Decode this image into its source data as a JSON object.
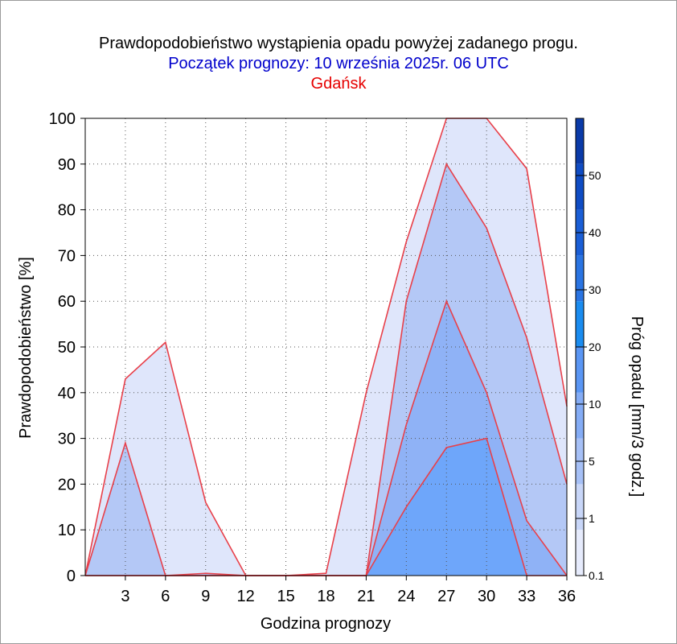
{
  "title": "Prawdopodobieństwo wystąpienia opadu powyżej zadanego progu.",
  "subtitle": "Początek prognozy: 10 września 2025r. 06 UTC",
  "location": "Gdańsk",
  "colors": {
    "title": "#000000",
    "subtitle": "#0000cc",
    "location": "#e60000",
    "series_line": "#e8404a"
  },
  "chart_data": {
    "type": "area",
    "title": "Prawdopodobieństwo wystąpienia opadu powyżej zadanego progu.",
    "xlabel": "Godzina prognozy",
    "ylabel": "Prawdopodobieństwo [%]",
    "xlim": [
      0,
      36
    ],
    "ylim": [
      0,
      100
    ],
    "x": [
      0,
      3,
      6,
      9,
      12,
      15,
      18,
      21,
      24,
      27,
      30,
      33,
      36
    ],
    "x_ticks": [
      "3",
      "6",
      "9",
      "12",
      "15",
      "18",
      "21",
      "24",
      "27",
      "30",
      "33",
      "36"
    ],
    "y_ticks": [
      "0",
      "10",
      "20",
      "30",
      "40",
      "50",
      "60",
      "70",
      "80",
      "90",
      "100"
    ],
    "grid": true,
    "series": [
      {
        "threshold": 0.1,
        "color": "#dfe6fb",
        "values": [
          0,
          43,
          51,
          16,
          0,
          0,
          0.5,
          40,
          73,
          100,
          100,
          89,
          37
        ]
      },
      {
        "threshold": 1,
        "color": "#b4c8f6",
        "values": [
          0,
          29,
          0,
          0.5,
          0,
          0,
          0,
          0,
          60,
          90,
          76,
          52,
          20
        ]
      },
      {
        "threshold": 5,
        "color": "#8fb2f6",
        "values": [
          0,
          0,
          0,
          0,
          0,
          0,
          0,
          0,
          33,
          60,
          40,
          12,
          0
        ]
      },
      {
        "threshold": 10,
        "color": "#6ea6fa",
        "values": [
          0,
          0,
          0,
          0,
          0,
          0,
          0,
          0,
          15,
          28,
          30,
          0,
          0
        ]
      }
    ],
    "colorbar": {
      "label": "Próg opadu [mm/3 godz.]",
      "tick_labels": [
        "0.1",
        "1",
        "5",
        "10",
        "20",
        "30",
        "40",
        "50"
      ],
      "segment_colors": [
        "#e6ebfc",
        "#c8d6f8",
        "#a6c0f6",
        "#84acf5",
        "#5a96f4",
        "#1a8cf0",
        "#2a74e2",
        "#1a5ed6",
        "#0f4cc4",
        "#0a3aa8"
      ]
    }
  }
}
